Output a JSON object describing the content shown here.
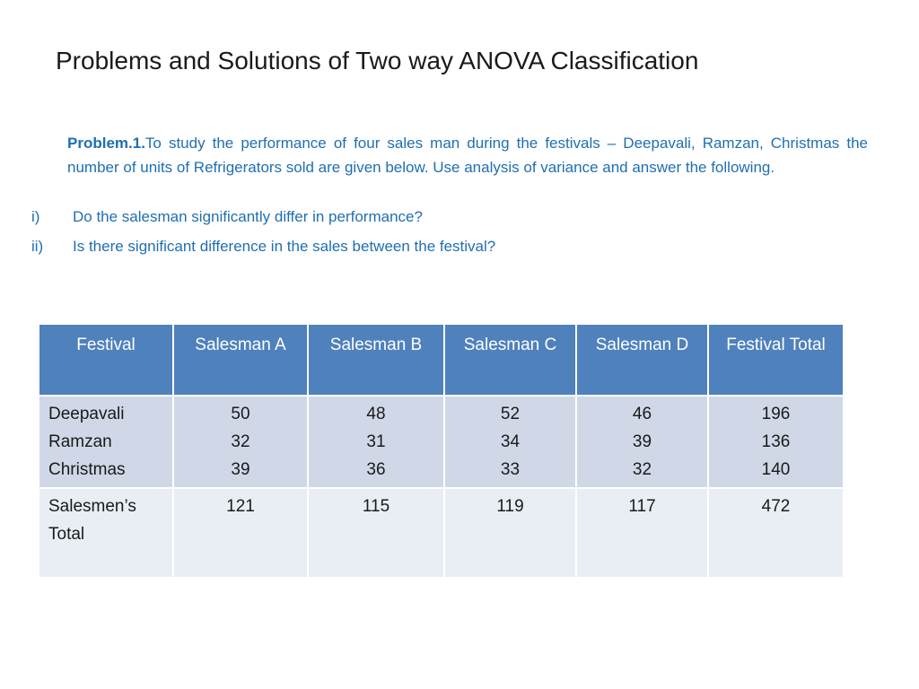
{
  "slide": {
    "title": "Problems and Solutions of Two way ANOVA Classification"
  },
  "problem": {
    "lead": "Problem.1.",
    "text": "To study the performance of four sales man during the festivals – Deepavali, Ramzan, Christmas the number of units of Refrigerators sold are given below. Use  analysis of variance and answer the following."
  },
  "questions": [
    {
      "num": "i)",
      "text": "Do the salesman significantly differ in performance?"
    },
    {
      "num": "ii)",
      "text": "Is there significant difference in the sales between the festival?"
    }
  ],
  "table": {
    "headers": [
      "Festival",
      "Salesman A",
      "Salesman B",
      "Salesman C",
      "Salesman D",
      "Festival Total"
    ],
    "row1": {
      "festivals": [
        "Deepavali",
        "Ramzan",
        "Christmas"
      ],
      "salesman_a": [
        "50",
        "32",
        "39"
      ],
      "salesman_b": [
        "48",
        "31",
        "36"
      ],
      "salesman_c": [
        "52",
        "34",
        "33"
      ],
      "salesman_d": [
        "46",
        "39",
        "32"
      ],
      "festival_total": [
        "196",
        "136",
        "140"
      ]
    },
    "row2": {
      "label": "Salesmen’s Total",
      "values": [
        "121",
        "115",
        "119",
        "117",
        "472"
      ]
    }
  },
  "colors": {
    "header_bg": "#4f81bd",
    "row1_bg": "#d0d8e8",
    "row2_bg": "#e9edf4",
    "body_text": "#1f6fb2"
  }
}
